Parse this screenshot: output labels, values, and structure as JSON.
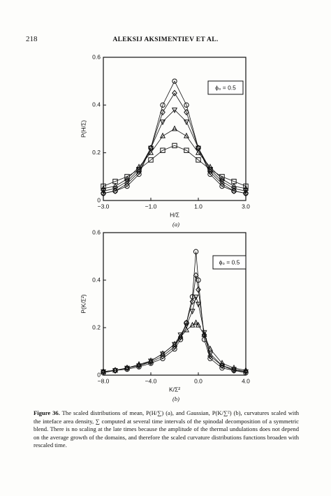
{
  "header": {
    "page_number": "218",
    "running_title": "ALEKSIJ AKSIMENTIEV ET AL."
  },
  "chart_data": [
    {
      "type": "scatter",
      "panel_label": "(a)",
      "x_label": "H/Σ",
      "y_label": "P(H/Σ)",
      "annotation": "ϕ₀ = 0.5",
      "xlim": [
        -3,
        3
      ],
      "ylim": [
        0,
        0.6
      ],
      "xticks": [
        {
          "value": -3,
          "label": "−3.0"
        },
        {
          "value": -1,
          "label": "−1.0"
        },
        {
          "value": 1,
          "label": "1.0"
        },
        {
          "value": 3,
          "label": "3.0"
        }
      ],
      "yticks": [
        0,
        0.2,
        0.4,
        0.6
      ],
      "x": [
        -3,
        -2.5,
        -2,
        -1.5,
        -1,
        -0.5,
        0,
        0.5,
        1,
        1.5,
        2,
        2.5,
        3
      ],
      "series": [
        {
          "marker": "circle",
          "color": "#111111",
          "values": [
            0.03,
            0.04,
            0.06,
            0.11,
            0.22,
            0.4,
            0.5,
            0.4,
            0.22,
            0.11,
            0.06,
            0.04,
            0.03
          ]
        },
        {
          "marker": "diamond",
          "color": "#111111",
          "values": [
            0.03,
            0.04,
            0.07,
            0.12,
            0.22,
            0.37,
            0.45,
            0.37,
            0.22,
            0.12,
            0.07,
            0.04,
            0.03
          ]
        },
        {
          "marker": "triangle-down",
          "color": "#111111",
          "values": [
            0.04,
            0.05,
            0.08,
            0.13,
            0.22,
            0.33,
            0.38,
            0.33,
            0.22,
            0.13,
            0.08,
            0.05,
            0.04
          ]
        },
        {
          "marker": "triangle",
          "color": "#111111",
          "values": [
            0.05,
            0.06,
            0.09,
            0.14,
            0.2,
            0.27,
            0.3,
            0.27,
            0.2,
            0.14,
            0.09,
            0.06,
            0.05
          ]
        },
        {
          "marker": "square",
          "color": "#111111",
          "values": [
            0.06,
            0.08,
            0.1,
            0.13,
            0.17,
            0.21,
            0.23,
            0.21,
            0.17,
            0.13,
            0.1,
            0.08,
            0.06
          ]
        }
      ]
    },
    {
      "type": "scatter",
      "panel_label": "(b)",
      "x_label": "K/Σ²",
      "y_label": "P(K/Σ²)",
      "annotation": "ϕ₀ = 0.5",
      "xlim": [
        -8,
        4
      ],
      "ylim": [
        0,
        0.6
      ],
      "xticks": [
        {
          "value": -8,
          "label": "−8.0"
        },
        {
          "value": -4,
          "label": "−4.0"
        },
        {
          "value": 0,
          "label": "0.0"
        },
        {
          "value": 4,
          "label": "4.0"
        }
      ],
      "yticks": [
        0,
        0.2,
        0.4,
        0.6
      ],
      "x": [
        -8,
        -7,
        -6,
        -5,
        -4,
        -3,
        -2,
        -1.5,
        -1,
        -0.5,
        -0.2,
        0,
        0.5,
        1,
        2,
        3,
        4
      ],
      "series": [
        {
          "marker": "circle",
          "color": "#111111",
          "values": [
            0.01,
            0.02,
            0.025,
            0.035,
            0.05,
            0.07,
            0.11,
            0.15,
            0.22,
            0.33,
            0.52,
            0.4,
            0.15,
            0.07,
            0.03,
            0.02,
            0.01
          ]
        },
        {
          "marker": "diamond",
          "color": "#111111",
          "values": [
            0.015,
            0.02,
            0.03,
            0.04,
            0.055,
            0.08,
            0.12,
            0.16,
            0.22,
            0.31,
            0.42,
            0.36,
            0.17,
            0.08,
            0.04,
            0.02,
            0.015
          ]
        },
        {
          "marker": "triangle-down",
          "color": "#111111",
          "values": [
            0.015,
            0.02,
            0.03,
            0.04,
            0.06,
            0.09,
            0.13,
            0.17,
            0.21,
            0.27,
            0.33,
            0.3,
            0.18,
            0.09,
            0.04,
            0.025,
            0.015
          ]
        },
        {
          "marker": "triangle",
          "color": "#111111",
          "values": [
            0.015,
            0.02,
            0.03,
            0.045,
            0.06,
            0.09,
            0.13,
            0.16,
            0.19,
            0.21,
            0.22,
            0.21,
            0.17,
            0.11,
            0.05,
            0.03,
            0.02
          ]
        }
      ]
    }
  ],
  "caption": {
    "label": "Figure 36.",
    "text": "The scaled distributions of mean, P(H/∑) (a), and Gaussian, P(K/∑²) (b), curvatures scaled with the inteface area density, ∑ computed at several time intervals of the spinodal decomposition of a symmetric blend. There is no scaling at the late times because the amplitude of the thermal undulations does not depend on the average growth of the domains, and therefore the scaled curvature distributions functions broaden with rescaled time."
  }
}
